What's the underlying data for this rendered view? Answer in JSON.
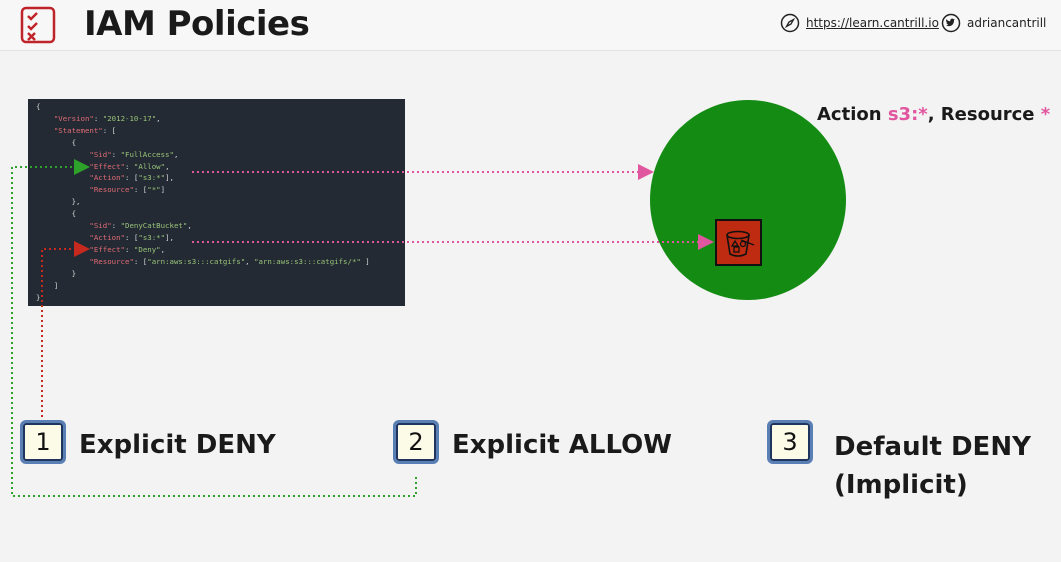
{
  "header": {
    "title": "IAM Policies",
    "site_url": "https://learn.cantrill.io",
    "twitter_handle": "adriancantrill"
  },
  "policy_code": [
    {
      "indent": 0,
      "parts": [
        {
          "t": "{",
          "c": "p"
        }
      ]
    },
    {
      "indent": 1,
      "parts": [
        {
          "t": "\"Version\"",
          "c": "k"
        },
        {
          "t": ": ",
          "c": "p"
        },
        {
          "t": "\"2012-10-17\"",
          "c": "s"
        },
        {
          "t": ",",
          "c": "p"
        }
      ]
    },
    {
      "indent": 1,
      "parts": [
        {
          "t": "\"Statement\"",
          "c": "k"
        },
        {
          "t": ": [",
          "c": "p"
        }
      ]
    },
    {
      "indent": 2,
      "parts": [
        {
          "t": "{",
          "c": "p"
        }
      ]
    },
    {
      "indent": 3,
      "parts": [
        {
          "t": "\"Sid\"",
          "c": "k"
        },
        {
          "t": ": ",
          "c": "p"
        },
        {
          "t": "\"FullAccess\"",
          "c": "s"
        },
        {
          "t": ",",
          "c": "p"
        }
      ]
    },
    {
      "indent": 3,
      "parts": [
        {
          "t": "\"Effect\"",
          "c": "k"
        },
        {
          "t": ": ",
          "c": "p"
        },
        {
          "t": "\"Allow\"",
          "c": "s"
        },
        {
          "t": ",",
          "c": "p"
        }
      ]
    },
    {
      "indent": 3,
      "parts": [
        {
          "t": "\"Action\"",
          "c": "k"
        },
        {
          "t": ": [",
          "c": "p"
        },
        {
          "t": "\"s3:*\"",
          "c": "s"
        },
        {
          "t": "],",
          "c": "p"
        }
      ]
    },
    {
      "indent": 3,
      "parts": [
        {
          "t": "\"Resource\"",
          "c": "k"
        },
        {
          "t": ": [",
          "c": "p"
        },
        {
          "t": "\"*\"",
          "c": "s"
        },
        {
          "t": "]",
          "c": "p"
        }
      ]
    },
    {
      "indent": 2,
      "parts": [
        {
          "t": "},",
          "c": "p"
        }
      ]
    },
    {
      "indent": 2,
      "parts": [
        {
          "t": "{",
          "c": "p"
        }
      ]
    },
    {
      "indent": 3,
      "parts": [
        {
          "t": "\"Sid\"",
          "c": "k"
        },
        {
          "t": ": ",
          "c": "p"
        },
        {
          "t": "\"DenyCatBucket\"",
          "c": "s"
        },
        {
          "t": ",",
          "c": "p"
        }
      ]
    },
    {
      "indent": 3,
      "parts": [
        {
          "t": "\"Action\"",
          "c": "k"
        },
        {
          "t": ": [",
          "c": "p"
        },
        {
          "t": "\"s3:*\"",
          "c": "s"
        },
        {
          "t": "],",
          "c": "p"
        }
      ]
    },
    {
      "indent": 3,
      "parts": [
        {
          "t": "\"Effect\"",
          "c": "k"
        },
        {
          "t": ": ",
          "c": "p"
        },
        {
          "t": "\"Deny\"",
          "c": "s"
        },
        {
          "t": ",",
          "c": "p"
        }
      ]
    },
    {
      "indent": 3,
      "parts": [
        {
          "t": "\"Resource\"",
          "c": "k"
        },
        {
          "t": ": [",
          "c": "p"
        },
        {
          "t": "\"arn:aws:s3:::catgifs\"",
          "c": "s"
        },
        {
          "t": ", ",
          "c": "p"
        },
        {
          "t": "\"arn:aws:s3:::catgifs/*\"",
          "c": "s"
        },
        {
          "t": " ]",
          "c": "p"
        }
      ]
    },
    {
      "indent": 2,
      "parts": [
        {
          "t": "}",
          "c": "p"
        }
      ]
    },
    {
      "indent": 1,
      "parts": [
        {
          "t": "]",
          "c": "p"
        }
      ]
    },
    {
      "indent": 0,
      "parts": [
        {
          "t": "}",
          "c": "p"
        }
      ]
    }
  ],
  "scope": {
    "action_prefix": "Action ",
    "action_value": "s3:*",
    "resource_prefix": ", Resource ",
    "resource_value": "*"
  },
  "steps": [
    {
      "number": "1",
      "label": "Explicit DENY"
    },
    {
      "number": "2",
      "label": "Explicit ALLOW"
    },
    {
      "number": "3",
      "label": "Default DENY",
      "sublabel": "(Implicit)"
    }
  ],
  "colors": {
    "circle": "#148b13",
    "bucket": "#bf2b10",
    "highlight_pink": "#e0569f",
    "allow_green": "#2ea12a",
    "deny_red": "#c62a1e"
  },
  "icons": [
    "checklist-icon",
    "compass-icon",
    "twitter-icon",
    "s3-bucket-icon"
  ]
}
